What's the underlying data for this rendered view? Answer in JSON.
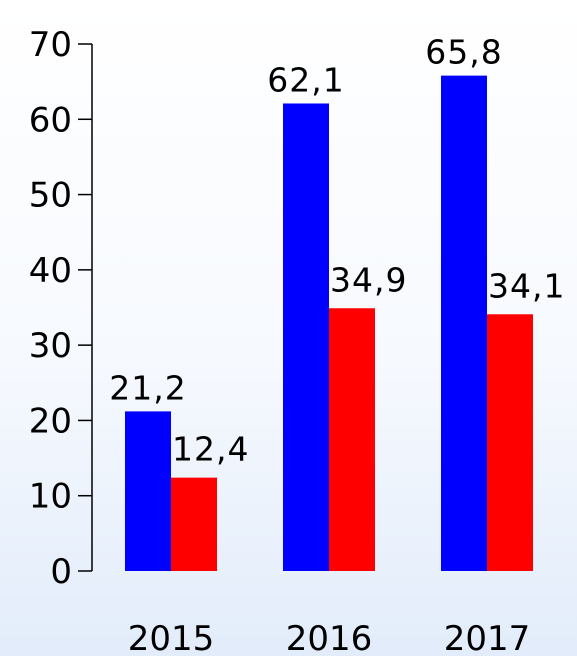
{
  "chart_data": {
    "type": "bar",
    "categories": [
      "2015",
      "2016",
      "2017"
    ],
    "series": [
      {
        "color": "#0000ff",
        "values": [
          21.2,
          62.1,
          65.8
        ],
        "labels": [
          "21,2",
          "62,1",
          "65,8"
        ]
      },
      {
        "color": "#ff0000",
        "values": [
          12.4,
          34.9,
          34.1
        ],
        "labels": [
          "12,4",
          "34,9",
          "34,1"
        ]
      }
    ],
    "ylim": [
      0,
      70
    ],
    "yticks": [
      "0",
      "10",
      "20",
      "30",
      "40",
      "50",
      "60",
      "70"
    ],
    "xlabel": "",
    "ylabel": "",
    "grid": false,
    "legend": "none"
  }
}
